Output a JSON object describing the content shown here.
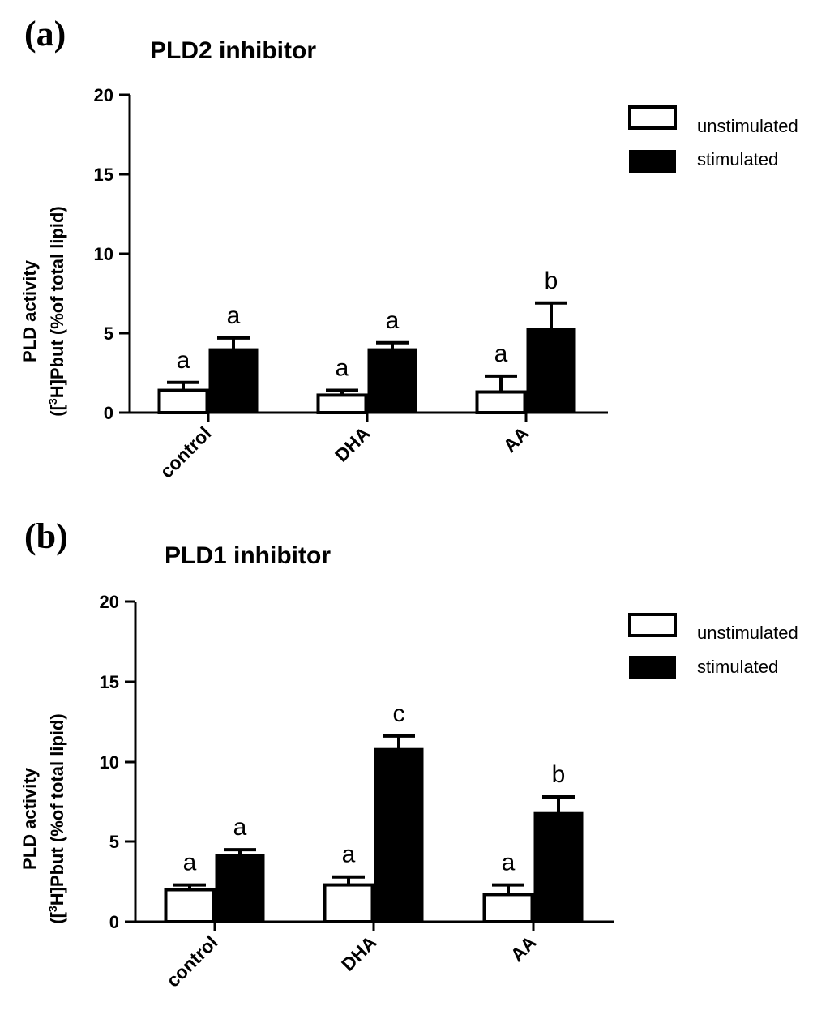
{
  "chart_data": [
    {
      "type": "bar",
      "panel_label": "(a)",
      "title": "PLD2 inhibitor",
      "xlabel": "",
      "ylabel_line1": "PLD activity",
      "ylabel_line2_pre": "([",
      "ylabel_sup": "3",
      "ylabel_line2_post": "H]Pbut (%of total lipid)",
      "ylim": [
        0,
        20
      ],
      "yticks": [
        "0",
        "5",
        "10",
        "15",
        "20"
      ],
      "categories": [
        "control",
        "DHA",
        "AA"
      ],
      "series": [
        {
          "name": "unstimulated",
          "fill": "#ffffff",
          "values": [
            1.4,
            1.1,
            1.3
          ],
          "errors": [
            0.5,
            0.3,
            1.0
          ]
        },
        {
          "name": "stimulated",
          "fill": "#000000",
          "values": [
            4.0,
            4.0,
            5.3
          ],
          "errors": [
            0.7,
            0.4,
            1.6
          ]
        }
      ],
      "significance": [
        [
          "a",
          "a"
        ],
        [
          "a",
          "a"
        ],
        [
          "a",
          "b"
        ]
      ],
      "legend": [
        "unstimulated",
        "stimulated"
      ]
    },
    {
      "type": "bar",
      "panel_label": "(b)",
      "title": "PLD1 inhibitor",
      "xlabel": "",
      "ylabel_line1": "PLD activity",
      "ylabel_line2_pre": "([",
      "ylabel_sup": "3",
      "ylabel_line2_post": "H]Pbut (%of total lipid)",
      "ylim": [
        0,
        20
      ],
      "yticks": [
        "0",
        "5",
        "10",
        "15",
        "20"
      ],
      "categories": [
        "control",
        "DHA",
        "AA"
      ],
      "series": [
        {
          "name": "unstimulated",
          "fill": "#ffffff",
          "values": [
            2.0,
            2.3,
            1.7
          ],
          "errors": [
            0.3,
            0.5,
            0.6
          ]
        },
        {
          "name": "stimulated",
          "fill": "#000000",
          "values": [
            4.2,
            10.8,
            6.8
          ],
          "errors": [
            0.3,
            0.8,
            1.0
          ]
        }
      ],
      "significance": [
        [
          "a",
          "a"
        ],
        [
          "a",
          "c"
        ],
        [
          "a",
          "b"
        ]
      ],
      "legend": [
        "unstimulated",
        "stimulated"
      ]
    }
  ]
}
